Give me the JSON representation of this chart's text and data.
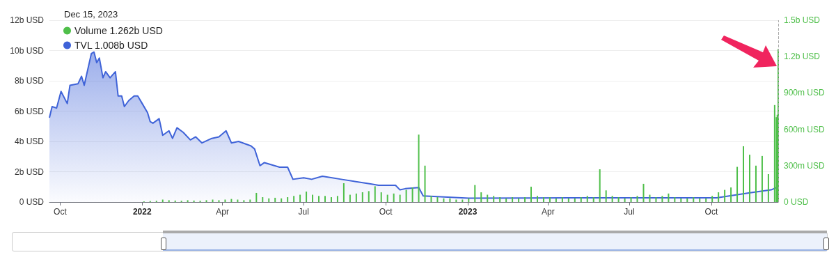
{
  "chart_data": {
    "type": "bar",
    "annotations": [
      "Dec 15, 2023"
    ],
    "xlim": [
      "2021-09-19",
      "2023-12-15"
    ],
    "xticks": [
      {
        "value": "2021-10-01",
        "label": "Oct"
      },
      {
        "value": "2022-01-01",
        "label": "2022"
      },
      {
        "value": "2022-04-01",
        "label": "Apr"
      },
      {
        "value": "2022-07-01",
        "label": "Jul"
      },
      {
        "value": "2022-10-01",
        "label": "Oct"
      },
      {
        "value": "2023-01-01",
        "label": "2023"
      },
      {
        "value": "2023-04-01",
        "label": "Apr"
      },
      {
        "value": "2023-07-01",
        "label": "Jul"
      },
      {
        "value": "2023-10-01",
        "label": "Oct"
      }
    ],
    "ylim": [
      0,
      12000000000
    ],
    "yticks": [
      {
        "value": 0,
        "label": "0 USD"
      },
      {
        "value": 2000000000,
        "label": "2b USD"
      },
      {
        "value": 4000000000,
        "label": "4b USD"
      },
      {
        "value": 6000000000,
        "label": "6b USD"
      },
      {
        "value": 8000000000,
        "label": "8b USD"
      },
      {
        "value": 10000000000,
        "label": "10b USD"
      },
      {
        "value": 12000000000,
        "label": "12b USD"
      }
    ],
    "y2lim": [
      0,
      1500000000
    ],
    "y2ticks": [
      {
        "value": 0,
        "label": "0 USD"
      },
      {
        "value": 300000000,
        "label": "300m USD"
      },
      {
        "value": 600000000,
        "label": "600m USD"
      },
      {
        "value": 900000000,
        "label": "900m USD"
      },
      {
        "value": 1200000000,
        "label": "1.2b USD"
      },
      {
        "value": 1500000000,
        "label": "1.5b USD"
      }
    ],
    "grid": "y",
    "legend": "top left",
    "ref_lines": [
      {
        "axis": "x",
        "value": "2023-12-15",
        "color": "#aaaaaa",
        "line_style": "dashed"
      }
    ],
    "series": [
      {
        "name": "Volume 1.262b USD",
        "axis": "y2",
        "color": "#4fbf4a",
        "x": [
          "2022-01-03",
          "2022-01-10",
          "2022-01-17",
          "2022-01-24",
          "2022-01-31",
          "2022-02-07",
          "2022-02-14",
          "2022-02-21",
          "2022-02-28",
          "2022-03-07",
          "2022-03-14",
          "2022-03-21",
          "2022-03-28",
          "2022-04-04",
          "2022-04-11",
          "2022-04-18",
          "2022-04-25",
          "2022-05-02",
          "2022-05-09",
          "2022-05-16",
          "2022-05-23",
          "2022-05-30",
          "2022-06-06",
          "2022-06-13",
          "2022-06-20",
          "2022-06-27",
          "2022-07-04",
          "2022-07-11",
          "2022-07-18",
          "2022-07-25",
          "2022-08-01",
          "2022-08-08",
          "2022-08-15",
          "2022-08-22",
          "2022-08-29",
          "2022-09-05",
          "2022-09-12",
          "2022-09-19",
          "2022-09-26",
          "2022-10-03",
          "2022-10-10",
          "2022-10-17",
          "2022-10-24",
          "2022-10-31",
          "2022-11-07",
          "2022-11-14",
          "2022-11-21",
          "2022-11-28",
          "2022-12-05",
          "2022-12-12",
          "2022-12-19",
          "2022-12-26",
          "2023-01-02",
          "2023-01-09",
          "2023-01-16",
          "2023-01-23",
          "2023-01-30",
          "2023-02-06",
          "2023-02-13",
          "2023-02-20",
          "2023-02-27",
          "2023-03-06",
          "2023-03-13",
          "2023-03-20",
          "2023-03-27",
          "2023-04-03",
          "2023-04-10",
          "2023-04-17",
          "2023-04-24",
          "2023-05-01",
          "2023-05-08",
          "2023-05-15",
          "2023-05-22",
          "2023-05-29",
          "2023-06-05",
          "2023-06-12",
          "2023-06-19",
          "2023-06-26",
          "2023-07-03",
          "2023-07-10",
          "2023-07-17",
          "2023-07-24",
          "2023-07-31",
          "2023-08-07",
          "2023-08-14",
          "2023-08-21",
          "2023-08-28",
          "2023-09-04",
          "2023-09-11",
          "2023-09-18",
          "2023-09-25",
          "2023-10-02",
          "2023-10-09",
          "2023-10-16",
          "2023-10-23",
          "2023-10-30",
          "2023-11-06",
          "2023-11-13",
          "2023-11-20",
          "2023-11-27",
          "2023-12-04",
          "2023-12-11",
          "2023-12-13",
          "2023-12-14",
          "2023-12-15"
        ],
        "values": [
          5000000,
          8000000,
          10000000,
          20000000,
          15000000,
          12000000,
          10000000,
          15000000,
          12000000,
          10000000,
          15000000,
          20000000,
          15000000,
          20000000,
          25000000,
          20000000,
          15000000,
          20000000,
          75000000,
          40000000,
          30000000,
          35000000,
          30000000,
          40000000,
          50000000,
          60000000,
          86000000,
          60000000,
          50000000,
          50000000,
          40000000,
          50000000,
          155000000,
          60000000,
          70000000,
          80000000,
          90000000,
          130000000,
          80000000,
          60000000,
          70000000,
          60000000,
          100000000,
          120000000,
          556000000,
          300000000,
          50000000,
          40000000,
          30000000,
          30000000,
          20000000,
          20000000,
          30000000,
          140000000,
          80000000,
          60000000,
          50000000,
          40000000,
          30000000,
          40000000,
          30000000,
          40000000,
          126000000,
          50000000,
          40000000,
          40000000,
          30000000,
          40000000,
          30000000,
          30000000,
          40000000,
          50000000,
          40000000,
          270000000,
          96000000,
          50000000,
          40000000,
          30000000,
          40000000,
          50000000,
          150000000,
          60000000,
          40000000,
          50000000,
          70000000,
          40000000,
          30000000,
          30000000,
          40000000,
          30000000,
          30000000,
          50000000,
          80000000,
          100000000,
          120000000,
          290000000,
          460000000,
          390000000,
          300000000,
          380000000,
          230000000,
          800000000,
          700000000,
          720000000,
          1262000000
        ]
      },
      {
        "name": "TVL 1.008b USD",
        "type": "area",
        "color": "#3f63d8",
        "x": [
          "2021-09-19",
          "2021-09-22",
          "2021-09-27",
          "2021-10-02",
          "2021-10-09",
          "2021-10-12",
          "2021-10-21",
          "2021-10-25",
          "2021-10-28",
          "2021-11-05",
          "2021-11-08",
          "2021-11-11",
          "2021-11-14",
          "2021-11-18",
          "2021-11-21",
          "2021-11-26",
          "2021-12-02",
          "2021-12-05",
          "2021-12-09",
          "2021-12-12",
          "2021-12-17",
          "2021-12-23",
          "2021-12-27",
          "2022-01-01",
          "2022-01-07",
          "2022-01-10",
          "2022-01-13",
          "2022-01-20",
          "2022-01-24",
          "2022-01-31",
          "2022-02-04",
          "2022-02-09",
          "2022-02-16",
          "2022-02-24",
          "2022-03-02",
          "2022-03-09",
          "2022-03-20",
          "2022-03-28",
          "2022-04-05",
          "2022-04-11",
          "2022-04-19",
          "2022-05-03",
          "2022-05-07",
          "2022-05-13",
          "2022-05-18",
          "2022-06-04",
          "2022-06-13",
          "2022-06-19",
          "2022-07-01",
          "2022-07-10",
          "2022-07-22",
          "2022-08-12",
          "2022-09-14",
          "2022-09-23",
          "2022-10-12",
          "2022-10-17",
          "2022-10-23",
          "2022-11-07",
          "2022-11-12",
          "2023-01-02",
          "2023-04-26",
          "2023-10-07",
          "2023-11-12",
          "2023-12-07",
          "2023-12-15"
        ],
        "values": [
          5560000000,
          6300000000,
          6200000000,
          7300000000,
          6500000000,
          7700000000,
          7800000000,
          8300000000,
          7700000000,
          9800000000,
          9900000000,
          9200000000,
          9500000000,
          8200000000,
          8600000000,
          8200000000,
          8600000000,
          7000000000,
          7000000000,
          6300000000,
          6700000000,
          7000000000,
          7000000000,
          6500000000,
          5900000000,
          5300000000,
          5200000000,
          5500000000,
          4400000000,
          4700000000,
          4200000000,
          4900000000,
          4600000000,
          4100000000,
          4300000000,
          3900000000,
          4200000000,
          4300000000,
          4700000000,
          3900000000,
          4000000000,
          3700000000,
          3500000000,
          2400000000,
          2600000000,
          2300000000,
          2300000000,
          1500000000,
          1600000000,
          1500000000,
          1700000000,
          1500000000,
          1200000000,
          1100000000,
          1100000000,
          800000000,
          880000000,
          950000000,
          400000000,
          250000000,
          280000000,
          280000000,
          600000000,
          800000000,
          1008000000
        ]
      }
    ]
  }
}
